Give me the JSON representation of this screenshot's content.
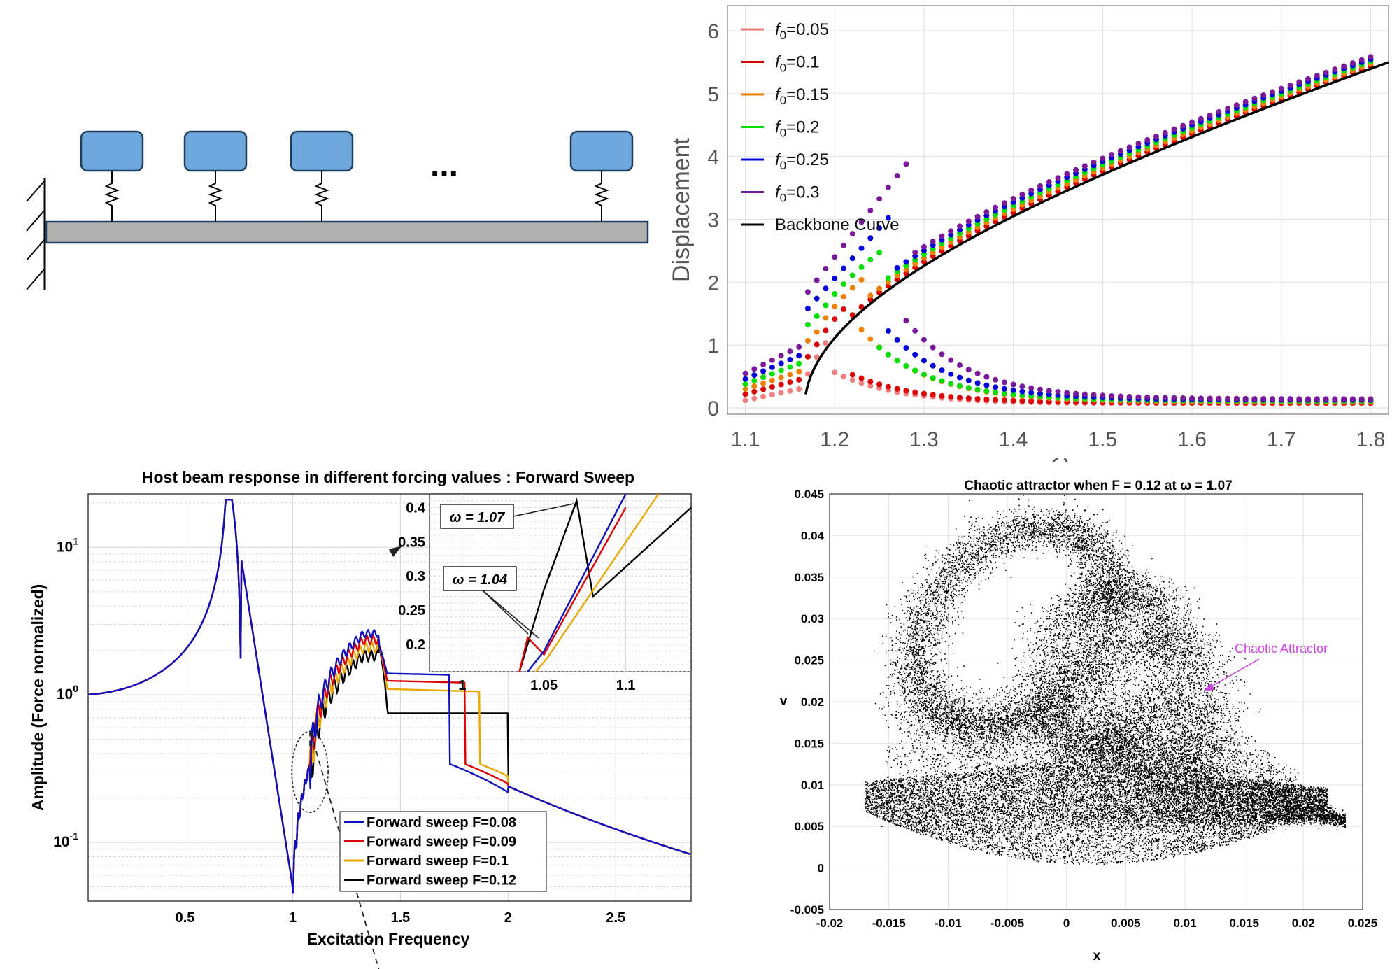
{
  "colors": {
    "mass_fill": "#6fa8dc",
    "mass_stroke": "#1f3f5f",
    "beam_fill": "#b0b0b0",
    "beam_stroke": "#1f3f5f",
    "attractor_label": "#cc44dd",
    "attractor_points": "#000000"
  },
  "beam_diagram": {
    "ellipsis": "..."
  },
  "chart_data": [
    {
      "id": "backbone",
      "type": "scatter",
      "title": "",
      "xlabel": "ω",
      "ylabel": "Displacement",
      "xlim": [
        1.08,
        1.82
      ],
      "ylim": [
        -0.1,
        6.4
      ],
      "xticks": [
        "1.1",
        "1.2",
        "1.3",
        "1.4",
        "1.5",
        "1.6",
        "1.7",
        "1.8"
      ],
      "yticks": [
        "0",
        "1",
        "2",
        "3",
        "4",
        "5",
        "6"
      ],
      "grid": true,
      "legend_position": "top-left",
      "series": [
        {
          "name": "f0=0.05",
          "legend_main": "f",
          "legend_sub": "0",
          "legend_value": "=0.05",
          "color": "#f08080",
          "lower_at_1_1": 0.12,
          "upper_start": 1.1,
          "upper_end": 1.19,
          "lower_peak": 0.55,
          "jump_omega": 1.2
        },
        {
          "name": "f0=0.1",
          "legend_main": "f",
          "legend_sub": "0",
          "legend_value": "=0.1",
          "color": "#dd0000",
          "lower_at_1_1": 0.22,
          "upper_start": 1.1,
          "upper_end": 1.21,
          "lower_peak": 0.5,
          "jump_omega": 1.22
        },
        {
          "name": "f0=0.15",
          "legend_main": "f",
          "legend_sub": "0",
          "legend_value": "=0.15",
          "color": "#f08000",
          "lower_at_1_1": 0.3,
          "upper_start": 1.1,
          "upper_end": 1.23,
          "lower_peak": 1.2,
          "jump_omega": 1.23
        },
        {
          "name": "f0=0.2",
          "legend_main": "f",
          "legend_sub": "0",
          "legend_value": "=0.2",
          "color": "#00e000",
          "lower_at_1_1": 0.38,
          "upper_start": 1.1,
          "upper_end": 1.25,
          "lower_peak": 0.9,
          "jump_omega": 1.25
        },
        {
          "name": "f0=0.25",
          "legend_main": "f",
          "legend_sub": "0",
          "legend_value": "=0.25",
          "color": "#0000dd",
          "lower_at_1_1": 0.46,
          "upper_start": 1.1,
          "upper_end": 1.26,
          "lower_peak": 1.15,
          "jump_omega": 1.26
        },
        {
          "name": "f0=0.3",
          "legend_main": "f",
          "legend_sub": "0",
          "legend_value": "=0.3",
          "color": "#7a1a9a",
          "lower_at_1_1": 0.55,
          "upper_start": 1.1,
          "upper_end": 1.28,
          "lower_peak": 1.3,
          "jump_omega": 1.28
        },
        {
          "name": "Backbone Curve",
          "legend_main": "Backbone Curve",
          "legend_sub": "",
          "legend_value": "",
          "color": "#000000",
          "line": true,
          "x": [
            1.167,
            1.17,
            1.18,
            1.2,
            1.25,
            1.3,
            1.4,
            1.5,
            1.6,
            1.7,
            1.82
          ],
          "y": [
            0.0,
            0.35,
            0.75,
            1.25,
            1.95,
            2.5,
            3.4,
            4.0,
            4.5,
            4.95,
            5.4
          ]
        }
      ]
    },
    {
      "id": "sweep",
      "type": "line",
      "title": "Host beam response in different forcing values : Forward Sweep",
      "xlabel": "Excitation Frequency",
      "ylabel": "Amplitude (Force normalized)",
      "xlim": [
        0.05,
        2.85
      ],
      "ylim_log": [
        0.04,
        23
      ],
      "log_y": true,
      "xticks": [
        "0.5",
        "1",
        "1.5",
        "2",
        "2.5"
      ],
      "yticks": [
        "10-1",
        "100",
        "101"
      ],
      "grid": true,
      "legend_position": "bottom-center",
      "series": [
        {
          "name": "Forward sweep F=0.08",
          "color": "#1010c0",
          "jump_freq": 1.73,
          "plateau": 1.35
        },
        {
          "name": "Forward sweep F=0.09",
          "color": "#dd0000",
          "jump_freq": 1.8,
          "plateau": 1.2
        },
        {
          "name": "Forward sweep F=0.1",
          "color": "#e8a800",
          "jump_freq": 1.87,
          "plateau": 1.05
        },
        {
          "name": "Forward sweep F=0.12",
          "color": "#000000",
          "jump_freq": 2.0,
          "plateau": 0.75
        }
      ],
      "inset": {
        "xlim": [
          0.98,
          1.14
        ],
        "ylim": [
          0.16,
          0.42
        ],
        "xticks": [
          "1",
          "1.05",
          "1.1"
        ],
        "yticks": [
          "0.2",
          "0.25",
          "0.3",
          "0.35",
          "0.4"
        ],
        "annotations": [
          "ω = 1.07",
          "ω = 1.04"
        ]
      }
    },
    {
      "id": "attractor",
      "type": "scatter",
      "title": "Chaotic attractor when F = 0.12 at ω = 1.07",
      "xlabel": "x",
      "ylabel": "v",
      "xlim": [
        -0.02,
        0.025
      ],
      "ylim": [
        -0.005,
        0.045
      ],
      "xticks": [
        "-0.02",
        "-0.015",
        "-0.01",
        "-0.005",
        "0",
        "0.005",
        "0.01",
        "0.015",
        "0.02",
        "0.025"
      ],
      "yticks": [
        "-0.005",
        "0",
        "0.005",
        "0.01",
        "0.015",
        "0.02",
        "0.025",
        "0.03",
        "0.035",
        "0.04",
        "0.045"
      ],
      "grid": true,
      "annotation": "Chaotic Attractor"
    }
  ]
}
